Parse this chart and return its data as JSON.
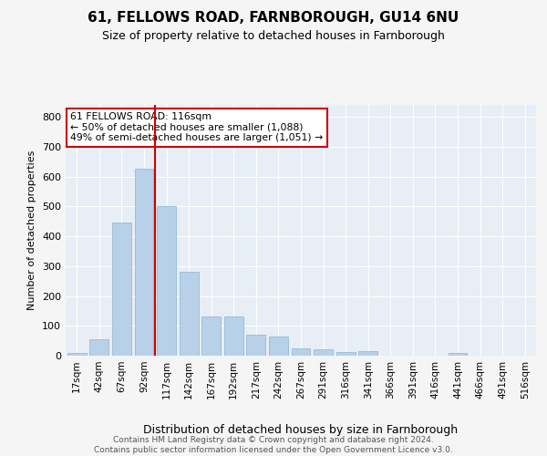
{
  "title": "61, FELLOWS ROAD, FARNBOROUGH, GU14 6NU",
  "subtitle": "Size of property relative to detached houses in Farnborough",
  "xlabel": "Distribution of detached houses by size in Farnborough",
  "ylabel": "Number of detached properties",
  "bar_color": "#b8d0e8",
  "bar_edgecolor": "#8ab4d4",
  "background_color": "#e8eef5",
  "grid_color": "#ffffff",
  "categories": [
    "17sqm",
    "42sqm",
    "67sqm",
    "92sqm",
    "117sqm",
    "142sqm",
    "167sqm",
    "192sqm",
    "217sqm",
    "242sqm",
    "267sqm",
    "291sqm",
    "316sqm",
    "341sqm",
    "366sqm",
    "391sqm",
    "416sqm",
    "441sqm",
    "466sqm",
    "491sqm",
    "516sqm"
  ],
  "values": [
    10,
    55,
    445,
    625,
    500,
    280,
    130,
    130,
    70,
    65,
    25,
    20,
    12,
    15,
    0,
    0,
    0,
    8,
    0,
    0,
    0
  ],
  "vline_x_index": 3.5,
  "annotation_text_line1": "61 FELLOWS ROAD: 116sqm",
  "annotation_text_line2": "← 50% of detached houses are smaller (1,088)",
  "annotation_text_line3": "49% of semi-detached houses are larger (1,051) →",
  "annotation_box_facecolor": "#ffffff",
  "annotation_box_edgecolor": "#cc0000",
  "vline_color": "#cc0000",
  "footer_line1": "Contains HM Land Registry data © Crown copyright and database right 2024.",
  "footer_line2": "Contains public sector information licensed under the Open Government Licence v3.0.",
  "ylim": [
    0,
    840
  ],
  "yticks": [
    0,
    100,
    200,
    300,
    400,
    500,
    600,
    700,
    800
  ],
  "figwidth": 6.0,
  "figheight": 5.0,
  "dpi": 100
}
